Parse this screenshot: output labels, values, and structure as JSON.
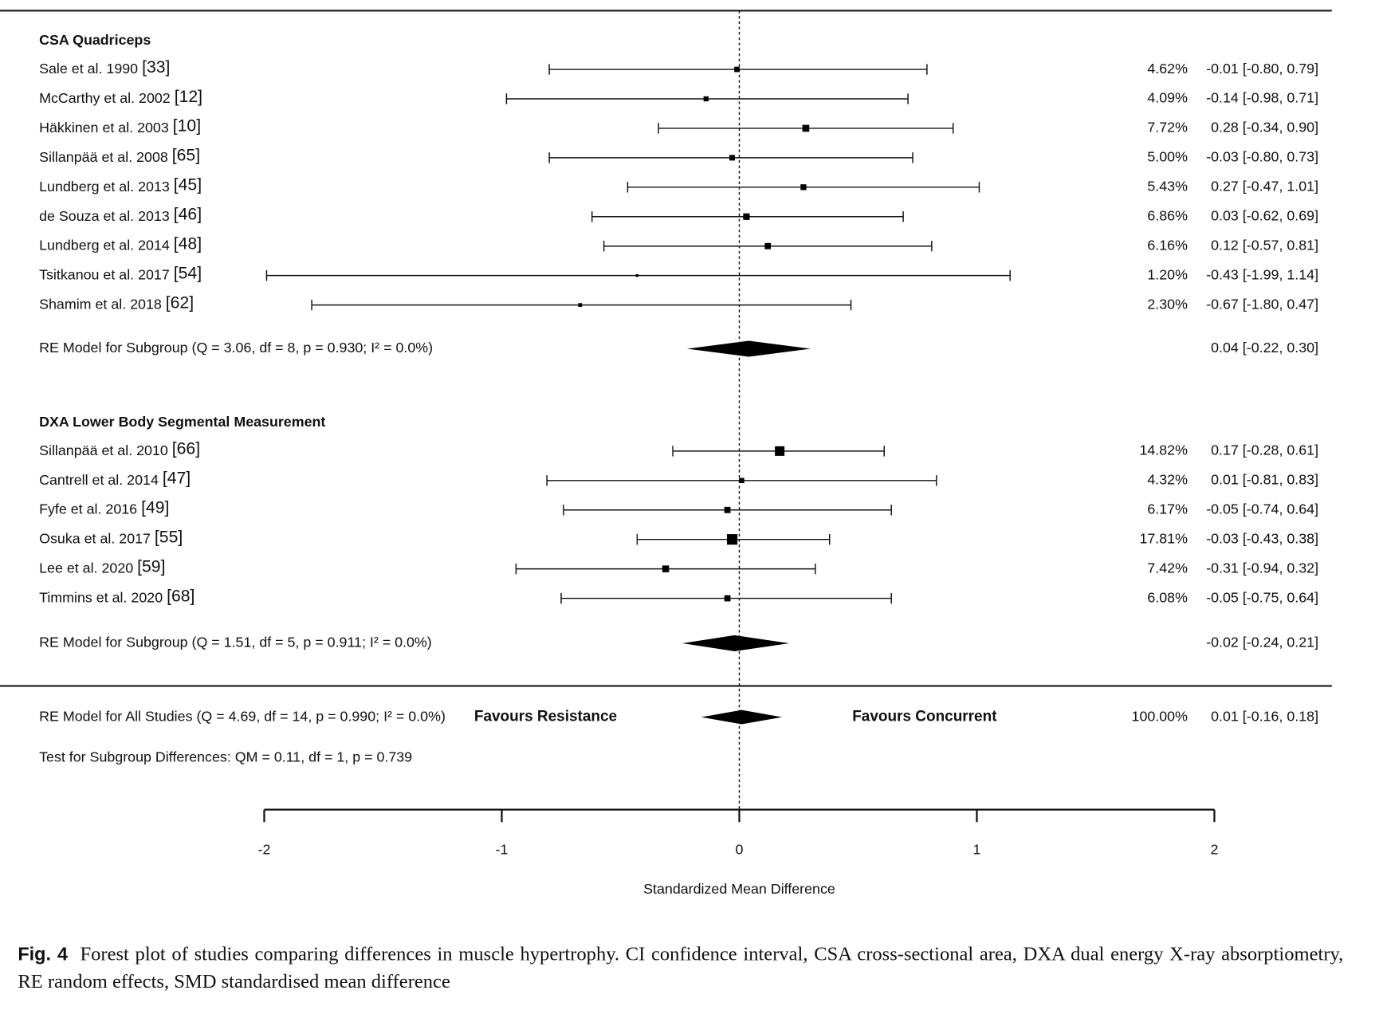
{
  "chart_data": {
    "type": "forest",
    "xlabel": "Standardized Mean Difference",
    "xlim": [
      -2,
      2
    ],
    "xticks": [
      "-2",
      "-1",
      "0",
      "1",
      "2"
    ],
    "groups": [
      {
        "title": "CSA Quadriceps",
        "studies": [
          {
            "name": "Sale et al. 1990",
            "ref": "[33]",
            "est": -0.01,
            "lo": -0.8,
            "hi": 0.79,
            "weight": "4.62%",
            "ci": "-0.01 [-0.80, 0.79]"
          },
          {
            "name": "McCarthy et al. 2002",
            "ref": "[12]",
            "est": -0.14,
            "lo": -0.98,
            "hi": 0.71,
            "weight": "4.09%",
            "ci": "-0.14 [-0.98, 0.71]"
          },
          {
            "name": "Häkkinen et al. 2003",
            "ref": "[10]",
            "est": 0.28,
            "lo": -0.34,
            "hi": 0.9,
            "weight": "7.72%",
            "ci": "0.28 [-0.34, 0.90]"
          },
          {
            "name": "Sillanpää et al. 2008",
            "ref": "[65]",
            "est": -0.03,
            "lo": -0.8,
            "hi": 0.73,
            "weight": "5.00%",
            "ci": "-0.03 [-0.80, 0.73]"
          },
          {
            "name": "Lundberg et al. 2013",
            "ref": "[45]",
            "est": 0.27,
            "lo": -0.47,
            "hi": 1.01,
            "weight": "5.43%",
            "ci": "0.27 [-0.47, 1.01]"
          },
          {
            "name": "de Souza et al. 2013",
            "ref": "[46]",
            "est": 0.03,
            "lo": -0.62,
            "hi": 0.69,
            "weight": "6.86%",
            "ci": "0.03 [-0.62, 0.69]"
          },
          {
            "name": "Lundberg et al. 2014",
            "ref": "[48]",
            "est": 0.12,
            "lo": -0.57,
            "hi": 0.81,
            "weight": "6.16%",
            "ci": "0.12 [-0.57, 0.81]"
          },
          {
            "name": "Tsitkanou et al. 2017",
            "ref": "[54]",
            "est": -0.43,
            "lo": -1.99,
            "hi": 1.14,
            "weight": "1.20%",
            "ci": "-0.43 [-1.99, 1.14]"
          },
          {
            "name": "Shamim et al. 2018",
            "ref": "[62]",
            "est": -0.67,
            "lo": -1.8,
            "hi": 0.47,
            "weight": "2.30%",
            "ci": "-0.67 [-1.80, 0.47]"
          }
        ],
        "re": {
          "label": "RE Model for Subgroup (Q = 3.06, df = 8, p = 0.930; I² = 0.0%)",
          "est": 0.04,
          "lo": -0.22,
          "hi": 0.3,
          "ci": "0.04 [-0.22, 0.30]"
        }
      },
      {
        "title": "DXA Lower Body Segmental Measurement",
        "studies": [
          {
            "name": "Sillanpää et al. 2010",
            "ref": "[66]",
            "est": 0.17,
            "lo": -0.28,
            "hi": 0.61,
            "weight": "14.82%",
            "ci": "0.17 [-0.28, 0.61]"
          },
          {
            "name": "Cantrell et al. 2014",
            "ref": "[47]",
            "est": 0.01,
            "lo": -0.81,
            "hi": 0.83,
            "weight": "4.32%",
            "ci": "0.01 [-0.81, 0.83]"
          },
          {
            "name": "Fyfe et al. 2016",
            "ref": "[49]",
            "est": -0.05,
            "lo": -0.74,
            "hi": 0.64,
            "weight": "6.17%",
            "ci": "-0.05 [-0.74, 0.64]"
          },
          {
            "name": "Osuka et al. 2017",
            "ref": "[55]",
            "est": -0.03,
            "lo": -0.43,
            "hi": 0.38,
            "weight": "17.81%",
            "ci": "-0.03 [-0.43, 0.38]"
          },
          {
            "name": "Lee et al. 2020",
            "ref": "[59]",
            "est": -0.31,
            "lo": -0.94,
            "hi": 0.32,
            "weight": "7.42%",
            "ci": "-0.31 [-0.94, 0.32]"
          },
          {
            "name": "Timmins et al. 2020",
            "ref": "[68]",
            "est": -0.05,
            "lo": -0.75,
            "hi": 0.64,
            "weight": "6.08%",
            "ci": "-0.05 [-0.75, 0.64]"
          }
        ],
        "re": {
          "label": "RE Model for Subgroup (Q = 1.51, df = 5, p = 0.911; I² = 0.0%)",
          "est": -0.02,
          "lo": -0.24,
          "hi": 0.21,
          "ci": "-0.02 [-0.24, 0.21]"
        }
      }
    ],
    "overall": {
      "label": "RE Model for All Studies (Q = 4.69, df = 14, p = 0.990; I² = 0.0%)",
      "est": 0.01,
      "lo": -0.16,
      "hi": 0.18,
      "weight": "100.00%",
      "ci": "0.01 [-0.16, 0.18]"
    },
    "favours_left": "Favours Resistance",
    "favours_right": "Favours Concurrent",
    "subgroup_test": "Test for Subgroup Differences: QM = 0.11, df = 1, p = 0.739"
  },
  "caption": {
    "fig": "Fig. 4",
    "text": "Forest plot of studies comparing differences in muscle hypertrophy. CI confidence interval, CSA cross-sectional area, DXA dual energy X-ray absorptiometry, RE random effects, SMD standardised mean difference"
  }
}
